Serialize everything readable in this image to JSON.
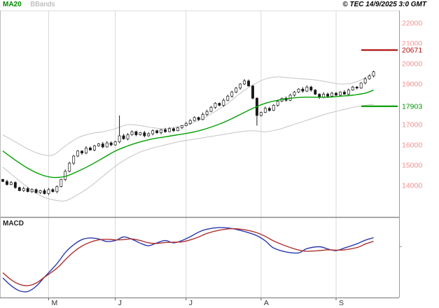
{
  "header": {
    "legend": [
      {
        "label": "MA20",
        "color": "#008800"
      },
      {
        "label": "BBands",
        "color": "#a8a8a8"
      }
    ],
    "copyright": "© TEC 14/9/2025 3:0 GMT"
  },
  "chart_data": [
    {
      "type": "candlestick",
      "title": "Daily price with MA20 and Bollinger Bands",
      "y_axis": {
        "min": 12450,
        "max": 22620,
        "ticks": [
          22000,
          21000,
          20000,
          19000,
          18000,
          17000,
          16000,
          15000,
          14000
        ],
        "tick_color": "#f58f8f"
      },
      "x_axis": {
        "month_labels": [
          "M",
          "J",
          "J",
          "A",
          "S"
        ],
        "month_start_indices": [
          11,
          27,
          44,
          62,
          80
        ],
        "label_color": "#333333"
      },
      "candles": {
        "first_open": 14300,
        "closes": [
          14200,
          14050,
          14150,
          13900,
          13750,
          13850,
          13700,
          13800,
          13650,
          13750,
          13600,
          13800,
          13700,
          13950,
          14300,
          14700,
          15100,
          15450,
          15700,
          15600,
          15850,
          15750,
          15950,
          16050,
          15900,
          16100,
          16000,
          16150,
          16450,
          16300,
          16500,
          16650,
          16500,
          16600,
          16450,
          16550,
          16700,
          16600,
          16750,
          16650,
          16800,
          16700,
          16850,
          16950,
          17050,
          17200,
          17350,
          17250,
          17500,
          17650,
          17850,
          18050,
          17950,
          18200,
          18400,
          18600,
          18800,
          19000,
          19150,
          18900,
          18300,
          17450,
          17600,
          17800,
          17700,
          17950,
          18150,
          18300,
          18200,
          18450,
          18600,
          18750,
          18650,
          18850,
          18700,
          18500,
          18350,
          18500,
          18400,
          18550,
          18450,
          18600,
          18500,
          18700,
          18850,
          18800,
          19050,
          19250,
          19400,
          19600
        ],
        "overrides": {
          "28": {
            "high": 17450
          },
          "61": {
            "low": 16950
          }
        },
        "up_color": "#ffffff",
        "down_color": "#1a1a1a",
        "outline_color": "#1a1a1a"
      },
      "overlays": [
        {
          "name": "ma20",
          "color": "#00a000",
          "width": 1.4,
          "points": [
            [
              0,
              15700
            ],
            [
              3,
              15250
            ],
            [
              6,
              14850
            ],
            [
              9,
              14550
            ],
            [
              12,
              14400
            ],
            [
              15,
              14450
            ],
            [
              18,
              14700
            ],
            [
              21,
              15000
            ],
            [
              24,
              15350
            ],
            [
              27,
              15700
            ],
            [
              30,
              15950
            ],
            [
              33,
              16150
            ],
            [
              36,
              16300
            ],
            [
              39,
              16400
            ],
            [
              42,
              16500
            ],
            [
              45,
              16600
            ],
            [
              48,
              16750
            ],
            [
              51,
              16950
            ],
            [
              54,
              17200
            ],
            [
              57,
              17500
            ],
            [
              60,
              17800
            ],
            [
              63,
              18050
            ],
            [
              66,
              18200
            ],
            [
              69,
              18300
            ],
            [
              72,
              18350
            ],
            [
              75,
              18350
            ],
            [
              78,
              18350
            ],
            [
              81,
              18400
            ],
            [
              84,
              18450
            ],
            [
              87,
              18550
            ],
            [
              89,
              18700
            ]
          ]
        },
        {
          "name": "bb_upper",
          "color": "#c4c4c4",
          "width": 1,
          "points": [
            [
              0,
              16500
            ],
            [
              3,
              16150
            ],
            [
              6,
              15800
            ],
            [
              9,
              15550
            ],
            [
              12,
              15500
            ],
            [
              15,
              15950
            ],
            [
              18,
              16350
            ],
            [
              21,
              16550
            ],
            [
              24,
              16650
            ],
            [
              27,
              16800
            ],
            [
              30,
              17000
            ],
            [
              33,
              16950
            ],
            [
              36,
              16850
            ],
            [
              39,
              16800
            ],
            [
              42,
              16900
            ],
            [
              45,
              17050
            ],
            [
              48,
              17300
            ],
            [
              51,
              17650
            ],
            [
              54,
              18050
            ],
            [
              57,
              18550
            ],
            [
              60,
              18950
            ],
            [
              63,
              19250
            ],
            [
              66,
              19350
            ],
            [
              69,
              19300
            ],
            [
              72,
              19250
            ],
            [
              75,
              19200
            ],
            [
              78,
              19100
            ],
            [
              81,
              19000
            ],
            [
              84,
              19050
            ],
            [
              87,
              19300
            ],
            [
              89,
              19550
            ]
          ]
        },
        {
          "name": "bb_lower",
          "color": "#c4c4c4",
          "width": 1,
          "points": [
            [
              0,
              14900
            ],
            [
              3,
              14400
            ],
            [
              6,
              13900
            ],
            [
              9,
              13500
            ],
            [
              12,
              13300
            ],
            [
              15,
              13250
            ],
            [
              18,
              13550
            ],
            [
              21,
              13950
            ],
            [
              24,
              14450
            ],
            [
              27,
              14950
            ],
            [
              30,
              15350
            ],
            [
              33,
              15650
            ],
            [
              36,
              15850
            ],
            [
              39,
              16000
            ],
            [
              42,
              16150
            ],
            [
              45,
              16250
            ],
            [
              48,
              16350
            ],
            [
              51,
              16450
            ],
            [
              54,
              16550
            ],
            [
              57,
              16650
            ],
            [
              60,
              16700
            ],
            [
              63,
              16650
            ],
            [
              66,
              16750
            ],
            [
              69,
              16950
            ],
            [
              72,
              17150
            ],
            [
              75,
              17350
            ],
            [
              78,
              17550
            ],
            [
              81,
              17700
            ],
            [
              84,
              17850
            ],
            [
              87,
              17950
            ],
            [
              89,
              18000
            ]
          ]
        }
      ],
      "levels": [
        {
          "value": 20671,
          "label": "20671",
          "color": "#b01010"
        },
        {
          "value": 17903,
          "label": "17903",
          "color": "#009900"
        }
      ]
    },
    {
      "type": "line",
      "label": "MACD",
      "ylim": [
        -750,
        350
      ],
      "series": [
        {
          "name": "MACD",
          "color": "#2a3ab0",
          "width": 1.4,
          "points": [
            [
              0,
              -480
            ],
            [
              2,
              -600
            ],
            [
              4,
              -680
            ],
            [
              6,
              -690
            ],
            [
              8,
              -610
            ],
            [
              10,
              -470
            ],
            [
              13,
              -260
            ],
            [
              15,
              -90
            ],
            [
              17,
              30
            ],
            [
              19,
              110
            ],
            [
              21,
              135
            ],
            [
              23,
              120
            ],
            [
              25,
              80
            ],
            [
              27,
              95
            ],
            [
              29,
              150
            ],
            [
              31,
              115
            ],
            [
              33,
              55
            ],
            [
              35,
              15
            ],
            [
              37,
              60
            ],
            [
              39,
              95
            ],
            [
              41,
              60
            ],
            [
              43,
              95
            ],
            [
              45,
              155
            ],
            [
              47,
              225
            ],
            [
              49,
              270
            ],
            [
              52,
              295
            ],
            [
              55,
              280
            ],
            [
              58,
              235
            ],
            [
              61,
              170
            ],
            [
              63,
              90
            ],
            [
              65,
              -20
            ],
            [
              68,
              -80
            ],
            [
              71,
              -95
            ],
            [
              73,
              -30
            ],
            [
              76,
              0
            ],
            [
              78,
              -35
            ],
            [
              80,
              -60
            ],
            [
              82,
              -20
            ],
            [
              85,
              45
            ],
            [
              87,
              100
            ],
            [
              89,
              140
            ]
          ]
        },
        {
          "name": "Signal",
          "color": "#b03030",
          "width": 1.4,
          "points": [
            [
              0,
              -400
            ],
            [
              2,
              -510
            ],
            [
              4,
              -580
            ],
            [
              6,
              -600
            ],
            [
              8,
              -560
            ],
            [
              10,
              -470
            ],
            [
              13,
              -330
            ],
            [
              15,
              -200
            ],
            [
              17,
              -80
            ],
            [
              19,
              10
            ],
            [
              21,
              70
            ],
            [
              23,
              105
            ],
            [
              25,
              115
            ],
            [
              27,
              105
            ],
            [
              29,
              110
            ],
            [
              31,
              120
            ],
            [
              33,
              95
            ],
            [
              35,
              60
            ],
            [
              37,
              50
            ],
            [
              39,
              65
            ],
            [
              41,
              70
            ],
            [
              43,
              75
            ],
            [
              45,
              105
            ],
            [
              47,
              150
            ],
            [
              49,
              205
            ],
            [
              52,
              255
            ],
            [
              55,
              278
            ],
            [
              58,
              262
            ],
            [
              61,
              215
            ],
            [
              63,
              160
            ],
            [
              65,
              90
            ],
            [
              68,
              10
            ],
            [
              71,
              -50
            ],
            [
              73,
              -70
            ],
            [
              76,
              -60
            ],
            [
              78,
              -48
            ],
            [
              80,
              -52
            ],
            [
              82,
              -48
            ],
            [
              85,
              -12
            ],
            [
              87,
              40
            ],
            [
              89,
              85
            ]
          ]
        }
      ]
    }
  ]
}
